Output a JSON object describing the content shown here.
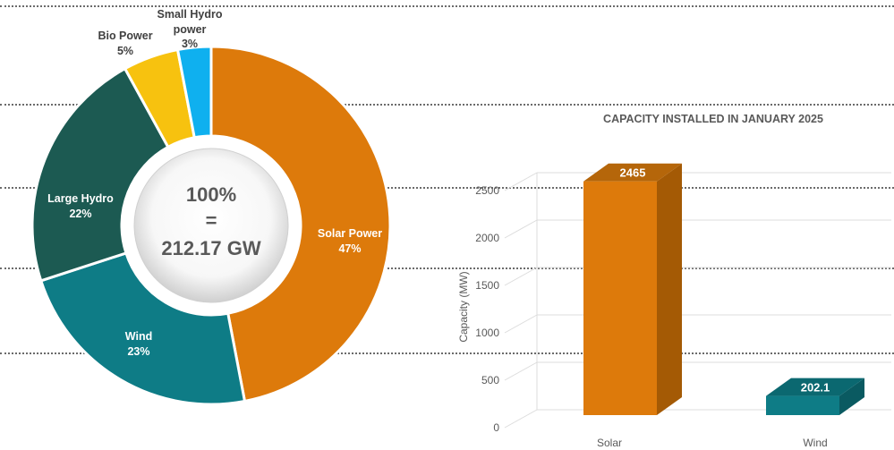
{
  "colors": {
    "solar": "#DD7A0B",
    "wind": "#0E7C86",
    "large_hydro": "#1C5A52",
    "bio": "#F7C20F",
    "small_hydro": "#0FB0EF"
  },
  "chart_data": [
    {
      "type": "pie",
      "center_label": [
        "100%",
        "=",
        "212.17 GW"
      ],
      "slices": [
        {
          "name": "Solar Power",
          "value": 47,
          "label": "47%"
        },
        {
          "name": "Wind",
          "value": 23,
          "label": "23%"
        },
        {
          "name": "Large Hydro",
          "value": 22,
          "label": "22%"
        },
        {
          "name": "Bio Power",
          "value": 5,
          "label": "5%"
        },
        {
          "name": "Small Hydro power",
          "value": 3,
          "label": "3%"
        }
      ]
    },
    {
      "type": "bar",
      "title": "CAPACITY INSTALLED IN JANUARY 2025",
      "ylabel": "Capacity (MW)",
      "xlabel": "",
      "categories": [
        "Solar",
        "Wind"
      ],
      "values": [
        2465,
        202.1
      ],
      "value_labels": [
        "2465",
        "202.1"
      ],
      "ylim": [
        0,
        2500
      ],
      "yticks": [
        0,
        500,
        1000,
        1500,
        2000,
        2500
      ],
      "grid": true
    }
  ]
}
